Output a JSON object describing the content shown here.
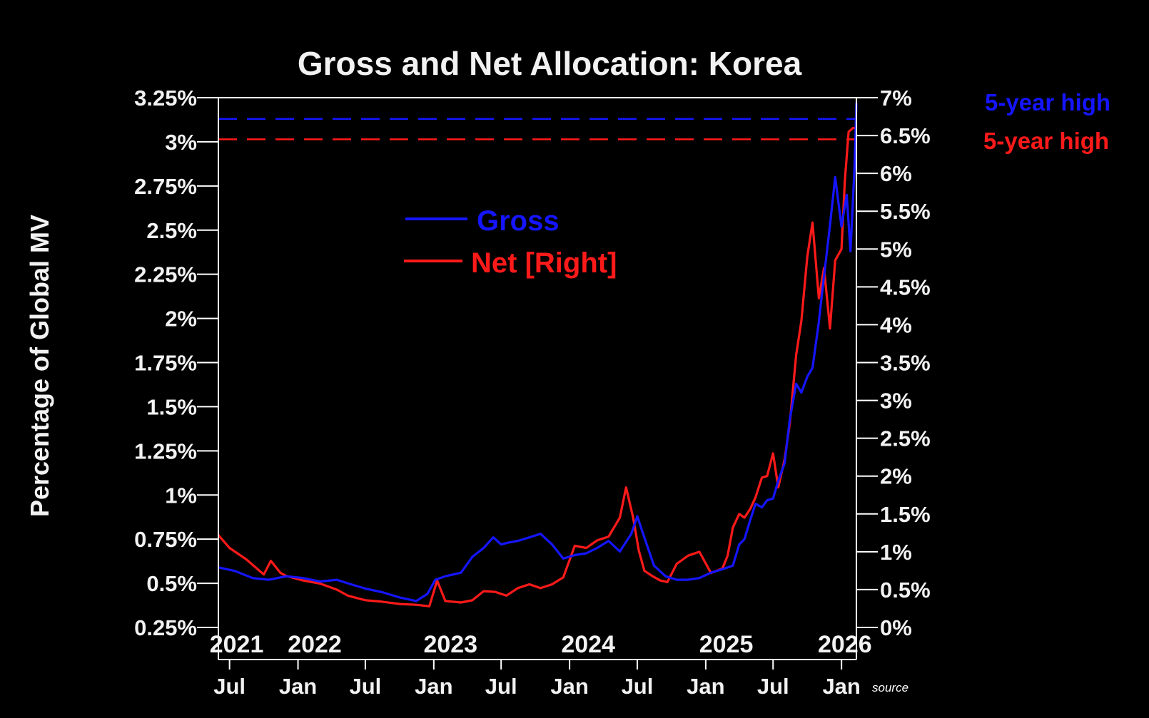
{
  "chart_data": {
    "type": "line",
    "title": "Gross and Net Allocation: Korea",
    "ylabel": "Percentage of Global MV",
    "source_label": "source",
    "colors": {
      "gross": "#1515ff",
      "net": "#ff1a1a",
      "background": "#000000",
      "axis": "#ffffff"
    },
    "x_range": [
      "2021-06-01",
      "2026-02-10"
    ],
    "ylim_left": [
      0.25,
      3.25
    ],
    "ylim_right": [
      0,
      7
    ],
    "left_ticks": [
      {
        "v": 3.25,
        "label": "3.25%"
      },
      {
        "v": 3.0,
        "label": "3%"
      },
      {
        "v": 2.75,
        "label": "2.75%"
      },
      {
        "v": 2.5,
        "label": "2.5%"
      },
      {
        "v": 2.25,
        "label": "2.25%"
      },
      {
        "v": 2.0,
        "label": "2%"
      },
      {
        "v": 1.75,
        "label": "1.75%"
      },
      {
        "v": 1.5,
        "label": "1.5%"
      },
      {
        "v": 1.25,
        "label": "1.25%"
      },
      {
        "v": 1.0,
        "label": "1%"
      },
      {
        "v": 0.75,
        "label": "0.75%"
      },
      {
        "v": 0.5,
        "label": "0.5%"
      },
      {
        "v": 0.25,
        "label": "0.25%"
      }
    ],
    "right_ticks": [
      {
        "v": 7,
        "label": "7%"
      },
      {
        "v": 6.5,
        "label": "6.5%"
      },
      {
        "v": 6,
        "label": "6%"
      },
      {
        "v": 5.5,
        "label": "5.5%"
      },
      {
        "v": 5,
        "label": "5%"
      },
      {
        "v": 4.5,
        "label": "4.5%"
      },
      {
        "v": 4,
        "label": "4%"
      },
      {
        "v": 3.5,
        "label": "3.5%"
      },
      {
        "v": 3,
        "label": "3%"
      },
      {
        "v": 2.5,
        "label": "2.5%"
      },
      {
        "v": 2,
        "label": "2%"
      },
      {
        "v": 1.5,
        "label": "1.5%"
      },
      {
        "v": 1,
        "label": "1%"
      },
      {
        "v": 0.5,
        "label": "0.5%"
      },
      {
        "v": 0,
        "label": "0%"
      }
    ],
    "month_ticks": [
      {
        "d": "2021-07-01",
        "label": "Jul"
      },
      {
        "d": "2022-01-01",
        "label": "Jan"
      },
      {
        "d": "2022-07-01",
        "label": "Jul"
      },
      {
        "d": "2023-01-01",
        "label": "Jan"
      },
      {
        "d": "2023-07-01",
        "label": "Jul"
      },
      {
        "d": "2024-01-01",
        "label": "Jan"
      },
      {
        "d": "2024-07-01",
        "label": "Jul"
      },
      {
        "d": "2025-01-01",
        "label": "Jan"
      },
      {
        "d": "2025-07-01",
        "label": "Jul"
      },
      {
        "d": "2026-01-01",
        "label": "Jan"
      }
    ],
    "year_labels": [
      {
        "d": "2021-07-20",
        "label": "2021"
      },
      {
        "d": "2022-02-15",
        "label": "2022"
      },
      {
        "d": "2023-02-15",
        "label": "2023"
      },
      {
        "d": "2024-02-20",
        "label": "2024"
      },
      {
        "d": "2025-02-25",
        "label": "2025"
      },
      {
        "d": "2026-01-10",
        "label": "2026"
      }
    ],
    "series": [
      {
        "name": "Gross",
        "axis": "left",
        "color": "#1515ff",
        "x": [
          "2021-06-01",
          "2021-07-15",
          "2021-09-01",
          "2021-10-15",
          "2021-12-01",
          "2022-01-15",
          "2022-03-01",
          "2022-04-15",
          "2022-05-15",
          "2022-07-01",
          "2022-08-15",
          "2022-10-01",
          "2022-11-15",
          "2022-12-15",
          "2023-01-05",
          "2023-02-01",
          "2023-03-15",
          "2023-04-15",
          "2023-05-15",
          "2023-06-10",
          "2023-07-01",
          "2023-07-20",
          "2023-08-15",
          "2023-09-15",
          "2023-10-15",
          "2023-11-15",
          "2023-12-15",
          "2024-01-15",
          "2024-02-15",
          "2024-03-15",
          "2024-04-15",
          "2024-05-15",
          "2024-06-15",
          "2024-07-01",
          "2024-07-15",
          "2024-08-15",
          "2024-09-15",
          "2024-10-15",
          "2024-11-15",
          "2024-12-15",
          "2025-01-15",
          "2025-02-15",
          "2025-03-15",
          "2025-04-01",
          "2025-04-15",
          "2025-05-01",
          "2025-05-15",
          "2025-06-01",
          "2025-06-15",
          "2025-07-01",
          "2025-07-15",
          "2025-08-01",
          "2025-08-15",
          "2025-09-01",
          "2025-09-15",
          "2025-10-01",
          "2025-10-15",
          "2025-11-01",
          "2025-11-10",
          "2025-11-20",
          "2025-12-01",
          "2025-12-15",
          "2026-01-01",
          "2026-01-15",
          "2026-01-25",
          "2026-02-05",
          "2026-02-10"
        ],
        "values": [
          0.59,
          0.57,
          0.53,
          0.52,
          0.54,
          0.53,
          0.51,
          0.52,
          0.5,
          0.47,
          0.45,
          0.42,
          0.4,
          0.44,
          0.52,
          0.54,
          0.56,
          0.65,
          0.7,
          0.76,
          0.72,
          0.73,
          0.74,
          0.76,
          0.78,
          0.72,
          0.64,
          0.66,
          0.67,
          0.7,
          0.74,
          0.68,
          0.78,
          0.88,
          0.79,
          0.6,
          0.54,
          0.52,
          0.52,
          0.53,
          0.56,
          0.58,
          0.6,
          0.72,
          0.75,
          0.86,
          0.95,
          0.93,
          0.97,
          0.98,
          1.08,
          1.18,
          1.43,
          1.63,
          1.58,
          1.67,
          1.72,
          1.98,
          2.15,
          2.33,
          2.53,
          2.8,
          2.52,
          2.7,
          2.38,
          2.86,
          3.22
        ]
      },
      {
        "name": "Net [Right]",
        "axis": "right",
        "color": "#ff1a1a",
        "x": [
          "2021-06-01",
          "2021-07-01",
          "2021-08-15",
          "2021-10-01",
          "2021-10-20",
          "2021-11-15",
          "2021-12-01",
          "2022-01-15",
          "2022-03-01",
          "2022-04-15",
          "2022-05-15",
          "2022-07-01",
          "2022-08-15",
          "2022-10-01",
          "2022-11-15",
          "2022-12-20",
          "2023-01-10",
          "2023-02-01",
          "2023-03-15",
          "2023-04-15",
          "2023-05-15",
          "2023-06-15",
          "2023-07-15",
          "2023-08-15",
          "2023-09-15",
          "2023-10-15",
          "2023-11-15",
          "2023-12-15",
          "2024-01-15",
          "2024-02-15",
          "2024-03-15",
          "2024-04-15",
          "2024-05-15",
          "2024-06-01",
          "2024-06-20",
          "2024-07-05",
          "2024-07-20",
          "2024-08-10",
          "2024-09-01",
          "2024-09-20",
          "2024-10-15",
          "2024-11-15",
          "2024-12-15",
          "2025-01-15",
          "2025-02-15",
          "2025-03-01",
          "2025-03-15",
          "2025-04-01",
          "2025-04-15",
          "2025-05-01",
          "2025-05-15",
          "2025-06-01",
          "2025-06-15",
          "2025-07-01",
          "2025-07-15",
          "2025-08-01",
          "2025-08-15",
          "2025-09-01",
          "2025-09-15",
          "2025-10-01",
          "2025-10-15",
          "2025-11-01",
          "2025-11-15",
          "2025-12-01",
          "2025-12-15",
          "2026-01-01",
          "2026-01-10",
          "2026-01-20",
          "2026-02-01",
          "2026-02-10"
        ],
        "values": [
          1.22,
          1.05,
          0.9,
          0.7,
          0.88,
          0.72,
          0.68,
          0.62,
          0.58,
          0.5,
          0.42,
          0.36,
          0.34,
          0.31,
          0.3,
          0.28,
          0.62,
          0.35,
          0.33,
          0.36,
          0.48,
          0.47,
          0.42,
          0.52,
          0.57,
          0.52,
          0.57,
          0.66,
          1.08,
          1.05,
          1.15,
          1.2,
          1.45,
          1.85,
          1.45,
          1.02,
          0.75,
          0.68,
          0.62,
          0.6,
          0.84,
          0.95,
          1.0,
          0.72,
          0.78,
          0.95,
          1.32,
          1.5,
          1.45,
          1.57,
          1.72,
          1.98,
          2.0,
          2.3,
          1.85,
          2.22,
          2.7,
          3.6,
          4.05,
          4.9,
          5.35,
          4.35,
          4.75,
          3.95,
          4.85,
          5.0,
          5.9,
          6.55,
          6.6,
          6.6
        ]
      }
    ],
    "reference_lines": [
      {
        "axis": "left",
        "value": 3.13,
        "color": "#1515ff",
        "label": "5-year high"
      },
      {
        "axis": "right",
        "value": 6.45,
        "color": "#ff1a1a",
        "label": "5-year high"
      }
    ],
    "legend": [
      {
        "label": "Gross",
        "color": "#1515ff"
      },
      {
        "label": "Net [Right]",
        "color": "#ff1a1a"
      }
    ]
  }
}
